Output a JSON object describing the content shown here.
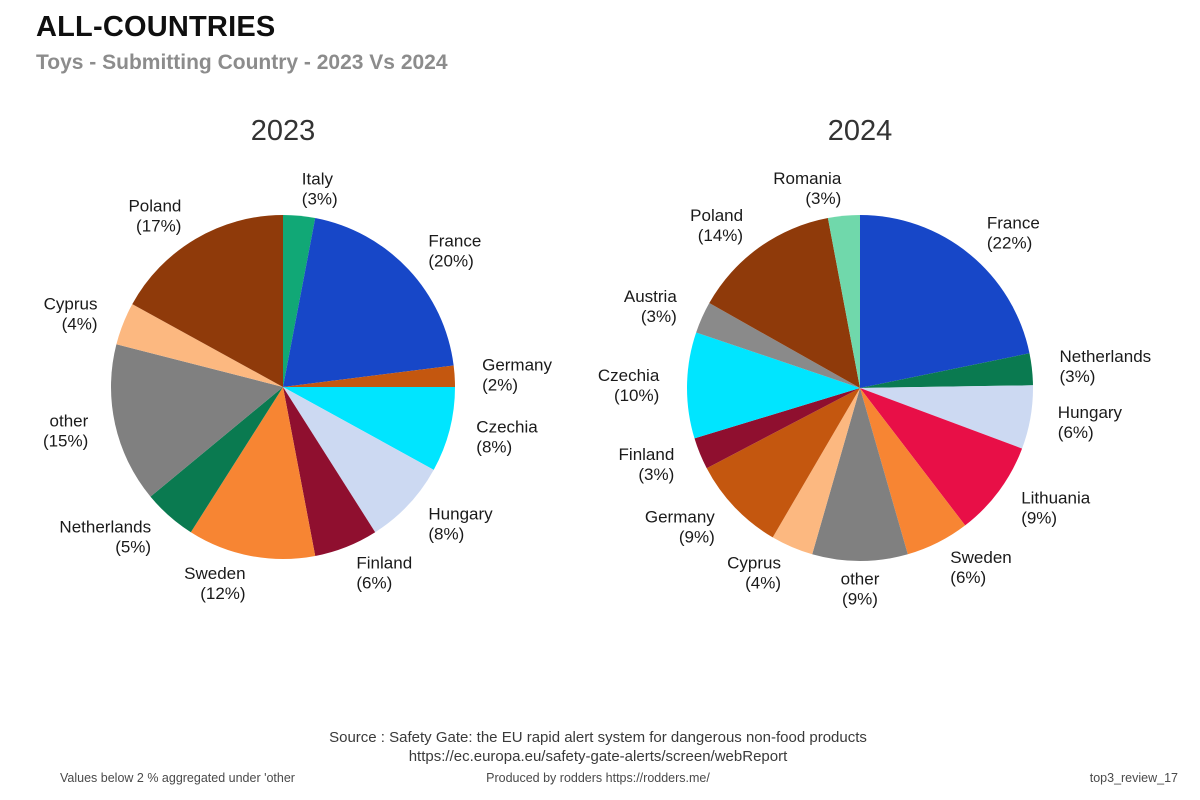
{
  "header": {
    "title": "ALL-COUNTRIES",
    "subtitle": "Toys - Submitting Country - 2023 Vs 2024"
  },
  "chart_data": [
    {
      "type": "pie",
      "title": "2023",
      "start_angle": "12-o'clock",
      "direction": "clockwise",
      "legend": "none",
      "label_format": "{label} ({pct}%)",
      "slices": [
        {
          "label": "Italy",
          "pct": 3,
          "color": "#11a876"
        },
        {
          "label": "France",
          "pct": 20,
          "color": "#1747c8"
        },
        {
          "label": "Germany",
          "pct": 2,
          "color": "#c4570f"
        },
        {
          "label": "Czechia",
          "pct": 8,
          "color": "#00e5ff"
        },
        {
          "label": "Hungary",
          "pct": 8,
          "color": "#ccd9f2"
        },
        {
          "label": "Finland",
          "pct": 6,
          "color": "#8f0f2f"
        },
        {
          "label": "Sweden",
          "pct": 12,
          "color": "#f78533"
        },
        {
          "label": "Netherlands",
          "pct": 5,
          "color": "#0a7a50"
        },
        {
          "label": "other",
          "pct": 15,
          "color": "#808080"
        },
        {
          "label": "Cyprus",
          "pct": 4,
          "color": "#fcb880"
        },
        {
          "label": "Poland",
          "pct": 17,
          "color": "#8f3a0a"
        }
      ]
    },
    {
      "type": "pie",
      "title": "2024",
      "start_angle": "12-o'clock",
      "direction": "clockwise",
      "legend": "none",
      "label_format": "{label} ({pct}%)",
      "slices": [
        {
          "label": "France",
          "pct": 22,
          "color": "#1747c8"
        },
        {
          "label": "Netherlands",
          "pct": 3,
          "color": "#0a7a50"
        },
        {
          "label": "Hungary",
          "pct": 6,
          "color": "#ccd9f2"
        },
        {
          "label": "Lithuania",
          "pct": 9,
          "color": "#e80f47"
        },
        {
          "label": "Sweden",
          "pct": 6,
          "color": "#f78533"
        },
        {
          "label": "other",
          "pct": 9,
          "color": "#808080"
        },
        {
          "label": "Cyprus",
          "pct": 4,
          "color": "#fcb880"
        },
        {
          "label": "Germany",
          "pct": 9,
          "color": "#c4570f"
        },
        {
          "label": "Finland",
          "pct": 3,
          "color": "#8f0f2f"
        },
        {
          "label": "Czechia",
          "pct": 10,
          "color": "#00e5ff"
        },
        {
          "label": "Austria",
          "pct": 3,
          "color": "#8a8a8a"
        },
        {
          "label": "Poland",
          "pct": 14,
          "color": "#8f3a0a"
        },
        {
          "label": "Romania",
          "pct": 3,
          "color": "#70d8ab"
        }
      ]
    }
  ],
  "footer": {
    "source_line1": "Source : Safety Gate: the EU rapid alert system for dangerous non-food products",
    "source_line2": "https://ec.europa.eu/safety-gate-alerts/screen/webReport",
    "note_left": "Values below 2 % aggregated under 'other",
    "produced_by": "Produced by rodders https://rodders.me/",
    "doc_ref": "top3_review_17"
  }
}
